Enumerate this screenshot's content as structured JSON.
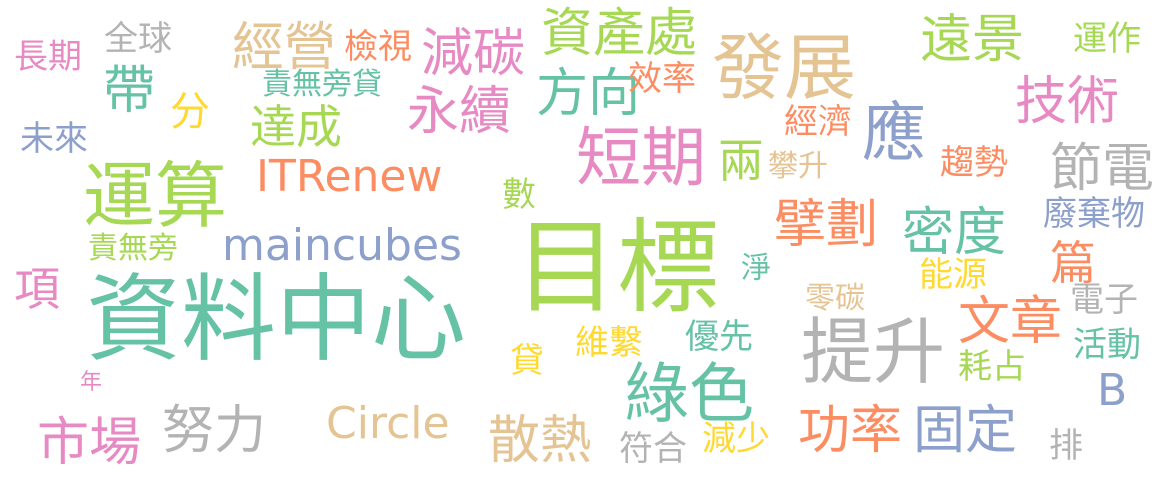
{
  "words": [
    {
      "text": "資料中心",
      "color": "#66c2a5"
    },
    {
      "text": "目標",
      "color": "#a6d854"
    },
    {
      "text": "提升",
      "color": "#b3b3b3"
    },
    {
      "text": "運算",
      "color": "#a6d854"
    },
    {
      "text": "發展",
      "color": "#e5c494"
    },
    {
      "text": "短期",
      "color": "#e78ac3"
    },
    {
      "text": "綠色",
      "color": "#66c2a5"
    },
    {
      "text": "maincubes",
      "color": "#8da0cb"
    },
    {
      "text": "ITRenew",
      "color": "#fc8d62"
    },
    {
      "text": "資產處",
      "color": "#a6d854"
    },
    {
      "text": "減碳",
      "color": "#e78ac3"
    },
    {
      "text": "經營",
      "color": "#e5c494"
    },
    {
      "text": "方向",
      "color": "#66c2a5"
    },
    {
      "text": "永續",
      "color": "#e78ac3"
    },
    {
      "text": "應",
      "color": "#8da0cb"
    },
    {
      "text": "技術",
      "color": "#e78ac3"
    },
    {
      "text": "遠景",
      "color": "#a6d854"
    },
    {
      "text": "節電",
      "color": "#b3b3b3"
    },
    {
      "text": "文章",
      "color": "#fc8d62"
    },
    {
      "text": "密度",
      "color": "#66c2a5"
    },
    {
      "text": "擘劃",
      "color": "#fc8d62"
    },
    {
      "text": "市場",
      "color": "#e78ac3"
    },
    {
      "text": "努力",
      "color": "#b3b3b3"
    },
    {
      "text": "Circle",
      "color": "#e5c494"
    },
    {
      "text": "散熱",
      "color": "#e5c494"
    },
    {
      "text": "功率",
      "color": "#fc8d62"
    },
    {
      "text": "固定",
      "color": "#8da0cb"
    },
    {
      "text": "達成",
      "color": "#a6d854"
    },
    {
      "text": "帶",
      "color": "#66c2a5"
    },
    {
      "text": "兩",
      "color": "#a6d854"
    },
    {
      "text": "B",
      "color": "#8da0cb"
    },
    {
      "text": "篇",
      "color": "#fc8d62"
    },
    {
      "text": "項",
      "color": "#e78ac3"
    },
    {
      "text": "分",
      "color": "#ffd92f"
    },
    {
      "text": "全球",
      "color": "#b3b3b3"
    },
    {
      "text": "長期",
      "color": "#e78ac3"
    },
    {
      "text": "檢視",
      "color": "#fc8d62"
    },
    {
      "text": "責無旁貸",
      "color": "#66c2a5"
    },
    {
      "text": "效率",
      "color": "#fc8d62"
    },
    {
      "text": "經濟",
      "color": "#fc8d62"
    },
    {
      "text": "攀升",
      "color": "#e5c494"
    },
    {
      "text": "趨勢",
      "color": "#fc8d62"
    },
    {
      "text": "運作",
      "color": "#a6d854"
    },
    {
      "text": "未來",
      "color": "#8da0cb"
    },
    {
      "text": "數",
      "color": "#a6d854"
    },
    {
      "text": "責無旁",
      "color": "#a6d854"
    },
    {
      "text": "淨",
      "color": "#66c2a5"
    },
    {
      "text": "廢棄物",
      "color": "#8da0cb"
    },
    {
      "text": "能源",
      "color": "#ffd92f"
    },
    {
      "text": "零碳",
      "color": "#e5c494"
    },
    {
      "text": "電子",
      "color": "#b3b3b3"
    },
    {
      "text": "維繫",
      "color": "#ffd92f"
    },
    {
      "text": "優先",
      "color": "#66c2a5"
    },
    {
      "text": "活動",
      "color": "#66c2a5"
    },
    {
      "text": "耗占",
      "color": "#a6d854"
    },
    {
      "text": "貸",
      "color": "#ffd92f"
    },
    {
      "text": "年",
      "color": "#e78ac3"
    },
    {
      "text": "符合",
      "color": "#b3b3b3"
    },
    {
      "text": "減少",
      "color": "#ffd92f"
    },
    {
      "text": "排",
      "color": "#b3b3b3"
    }
  ]
}
